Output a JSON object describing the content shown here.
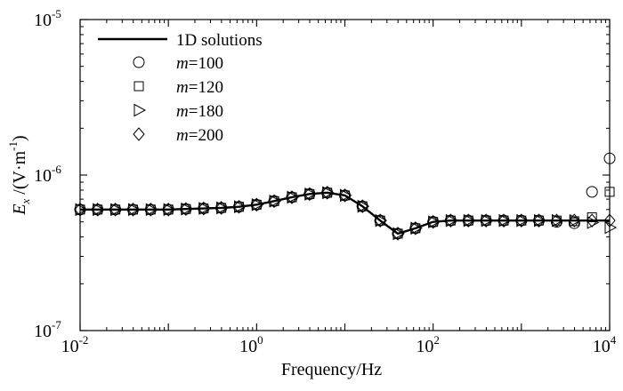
{
  "chart_data": {
    "type": "line",
    "xlabel": "Frequency/Hz",
    "ylabel": {
      "symbol": "E",
      "subscript": "x",
      "unit_prefix": " /(V·m",
      "unit_exp": "-1",
      "unit_suffix": ")"
    },
    "x_scale": "log",
    "y_scale": "log",
    "xlim": [
      0.01,
      10000
    ],
    "ylim": [
      1e-07,
      1e-05
    ],
    "x_ticks": [
      {
        "value": 0.01,
        "base": "10",
        "exp": "-2"
      },
      {
        "value": 1,
        "base": "10",
        "exp": "0"
      },
      {
        "value": 100,
        "base": "10",
        "exp": "2"
      },
      {
        "value": 10000,
        "base": "10",
        "exp": "4"
      }
    ],
    "y_ticks": [
      {
        "value": 1e-07,
        "base": "10",
        "exp": "-7"
      },
      {
        "value": 1e-06,
        "base": "10",
        "exp": "-6"
      },
      {
        "value": 1e-05,
        "base": "10",
        "exp": "-5"
      }
    ],
    "grid": false,
    "legend_position": "top-left",
    "line_series": {
      "name": "1D solutions",
      "x": [
        0.01,
        0.0158,
        0.0251,
        0.0398,
        0.0631,
        0.1,
        0.158,
        0.251,
        0.398,
        0.631,
        1,
        1.58,
        2.51,
        3.98,
        6.31,
        10,
        15.8,
        25.1,
        39.8,
        63.1,
        100,
        158,
        251,
        398,
        631,
        1000,
        1580,
        2510,
        3980,
        6310,
        10000
      ],
      "y": [
        6e-07,
        6e-07,
        6e-07,
        6e-07,
        6e-07,
        6e-07,
        6.05e-07,
        6.1e-07,
        6.15e-07,
        6.25e-07,
        6.45e-07,
        6.8e-07,
        7.2e-07,
        7.55e-07,
        7.7e-07,
        7.4e-07,
        6.3e-07,
        5.1e-07,
        4.2e-07,
        4.55e-07,
        5e-07,
        5.1e-07,
        5.1e-07,
        5.1e-07,
        5.1e-07,
        5.1e-07,
        5.1e-07,
        5.1e-07,
        5.1e-07,
        5.1e-07,
        5.1e-07
      ]
    },
    "series": [
      {
        "name_prefix": "m",
        "name_suffix": "=100",
        "marker": "circle",
        "x": [
          0.01,
          0.0158,
          0.0251,
          0.0398,
          0.0631,
          0.1,
          0.158,
          0.251,
          0.398,
          0.631,
          1,
          1.58,
          2.51,
          3.98,
          6.31,
          10,
          15.8,
          25.1,
          39.8,
          63.1,
          100,
          158,
          251,
          398,
          631,
          1000,
          1580,
          2510,
          3980,
          6310,
          10000
        ],
        "y": [
          6e-07,
          6e-07,
          6e-07,
          6e-07,
          6e-07,
          6e-07,
          6.05e-07,
          6.1e-07,
          6.15e-07,
          6.25e-07,
          6.45e-07,
          6.8e-07,
          7.2e-07,
          7.55e-07,
          7.7e-07,
          7.4e-07,
          6.3e-07,
          5.1e-07,
          4.2e-07,
          4.55e-07,
          5e-07,
          5.1e-07,
          5.1e-07,
          5.1e-07,
          5.1e-07,
          5.1e-07,
          5.1e-07,
          5e-07,
          4.9e-07,
          7.8e-07,
          1.28e-06
        ]
      },
      {
        "name_prefix": "m",
        "name_suffix": "=120",
        "marker": "square",
        "x": [
          0.01,
          0.0158,
          0.0251,
          0.0398,
          0.0631,
          0.1,
          0.158,
          0.251,
          0.398,
          0.631,
          1,
          1.58,
          2.51,
          3.98,
          6.31,
          10,
          15.8,
          25.1,
          39.8,
          63.1,
          100,
          158,
          251,
          398,
          631,
          1000,
          1580,
          2510,
          3980,
          6310,
          10000
        ],
        "y": [
          6e-07,
          6e-07,
          6e-07,
          6e-07,
          6e-07,
          6e-07,
          6.05e-07,
          6.1e-07,
          6.15e-07,
          6.25e-07,
          6.45e-07,
          6.8e-07,
          7.2e-07,
          7.55e-07,
          7.7e-07,
          7.4e-07,
          6.3e-07,
          5.1e-07,
          4.2e-07,
          4.55e-07,
          5e-07,
          5.1e-07,
          5.1e-07,
          5.1e-07,
          5.1e-07,
          5.1e-07,
          5.1e-07,
          5.1e-07,
          5.05e-07,
          5.35e-07,
          7.8e-07
        ]
      },
      {
        "name_prefix": "m",
        "name_suffix": "=180",
        "marker": "triangle-right",
        "x": [
          0.01,
          0.0158,
          0.0251,
          0.0398,
          0.0631,
          0.1,
          0.158,
          0.251,
          0.398,
          0.631,
          1,
          1.58,
          2.51,
          3.98,
          6.31,
          10,
          15.8,
          25.1,
          39.8,
          63.1,
          100,
          158,
          251,
          398,
          631,
          1000,
          1580,
          2510,
          3980,
          6310,
          10000
        ],
        "y": [
          6e-07,
          6e-07,
          6e-07,
          6e-07,
          6e-07,
          6e-07,
          6.05e-07,
          6.1e-07,
          6.15e-07,
          6.25e-07,
          6.45e-07,
          6.8e-07,
          7.2e-07,
          7.55e-07,
          7.7e-07,
          7.4e-07,
          6.3e-07,
          5.1e-07,
          4.2e-07,
          4.55e-07,
          5e-07,
          5.1e-07,
          5.1e-07,
          5.1e-07,
          5.1e-07,
          5.1e-07,
          5.1e-07,
          5.1e-07,
          5.1e-07,
          4.95e-07,
          4.6e-07
        ]
      },
      {
        "name_prefix": "m",
        "name_suffix": "=200",
        "marker": "diamond",
        "x": [
          0.01,
          0.0158,
          0.0251,
          0.0398,
          0.0631,
          0.1,
          0.158,
          0.251,
          0.398,
          0.631,
          1,
          1.58,
          2.51,
          3.98,
          6.31,
          10,
          15.8,
          25.1,
          39.8,
          63.1,
          100,
          158,
          251,
          398,
          631,
          1000,
          1580,
          2510,
          3980,
          6310,
          10000
        ],
        "y": [
          6e-07,
          6e-07,
          6e-07,
          6e-07,
          6e-07,
          6e-07,
          6.05e-07,
          6.1e-07,
          6.15e-07,
          6.25e-07,
          6.45e-07,
          6.8e-07,
          7.2e-07,
          7.55e-07,
          7.7e-07,
          7.4e-07,
          6.3e-07,
          5.1e-07,
          4.2e-07,
          4.55e-07,
          5e-07,
          5.1e-07,
          5.1e-07,
          5.1e-07,
          5.1e-07,
          5.1e-07,
          5.1e-07,
          5.1e-07,
          5.1e-07,
          5.1e-07,
          5.1e-07
        ]
      }
    ]
  }
}
